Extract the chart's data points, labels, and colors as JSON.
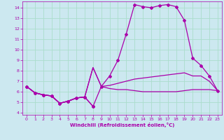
{
  "xlabel": "Windchill (Refroidissement éolien,°C)",
  "bg_color": "#cce8f0",
  "grid_color": "#aaddcc",
  "line_color": "#aa00aa",
  "xlim": [
    -0.5,
    23.5
  ],
  "ylim": [
    3.8,
    14.6
  ],
  "xticks": [
    0,
    1,
    2,
    3,
    4,
    5,
    6,
    7,
    8,
    9,
    10,
    11,
    12,
    13,
    14,
    15,
    16,
    17,
    18,
    19,
    20,
    21,
    22,
    23
  ],
  "yticks": [
    4,
    5,
    6,
    7,
    8,
    9,
    10,
    11,
    12,
    13,
    14
  ],
  "curve_main": {
    "x": [
      0,
      1,
      2,
      3,
      4,
      5,
      6,
      7,
      8,
      9,
      10,
      11,
      12,
      13,
      14,
      15,
      16,
      17,
      18,
      19,
      20,
      21,
      22,
      23
    ],
    "y": [
      6.5,
      5.9,
      5.7,
      5.6,
      4.9,
      5.1,
      5.4,
      5.5,
      4.6,
      6.5,
      7.5,
      9.0,
      11.5,
      14.3,
      14.1,
      14.0,
      14.2,
      14.3,
      14.1,
      12.8,
      9.2,
      8.5,
      7.5,
      6.1
    ]
  },
  "curve_upper_mid": {
    "x": [
      0,
      1,
      2,
      3,
      4,
      5,
      6,
      7,
      8,
      9,
      10,
      11,
      12,
      13,
      14,
      15,
      16,
      17,
      18,
      19,
      20,
      21,
      22,
      23
    ],
    "y": [
      6.5,
      5.9,
      5.7,
      5.6,
      4.9,
      5.1,
      5.4,
      5.5,
      8.3,
      6.5,
      6.6,
      6.8,
      7.0,
      7.2,
      7.3,
      7.4,
      7.5,
      7.6,
      7.7,
      7.8,
      7.5,
      7.5,
      7.0,
      6.1
    ]
  },
  "curve_lower_mid": {
    "x": [
      0,
      1,
      2,
      3,
      4,
      5,
      6,
      7,
      8,
      9,
      10,
      11,
      12,
      13,
      14,
      15,
      16,
      17,
      18,
      19,
      20,
      21,
      22,
      23
    ],
    "y": [
      6.5,
      5.9,
      5.7,
      5.6,
      4.9,
      5.1,
      5.4,
      5.5,
      8.3,
      6.5,
      6.3,
      6.2,
      6.2,
      6.1,
      6.0,
      6.0,
      6.0,
      6.0,
      6.0,
      6.1,
      6.2,
      6.2,
      6.2,
      6.1
    ]
  },
  "curve_short": {
    "x": [
      0,
      1,
      2,
      3,
      4,
      5,
      6,
      7,
      8
    ],
    "y": [
      6.5,
      5.9,
      5.7,
      5.6,
      4.9,
      5.1,
      5.4,
      5.5,
      4.6
    ]
  }
}
